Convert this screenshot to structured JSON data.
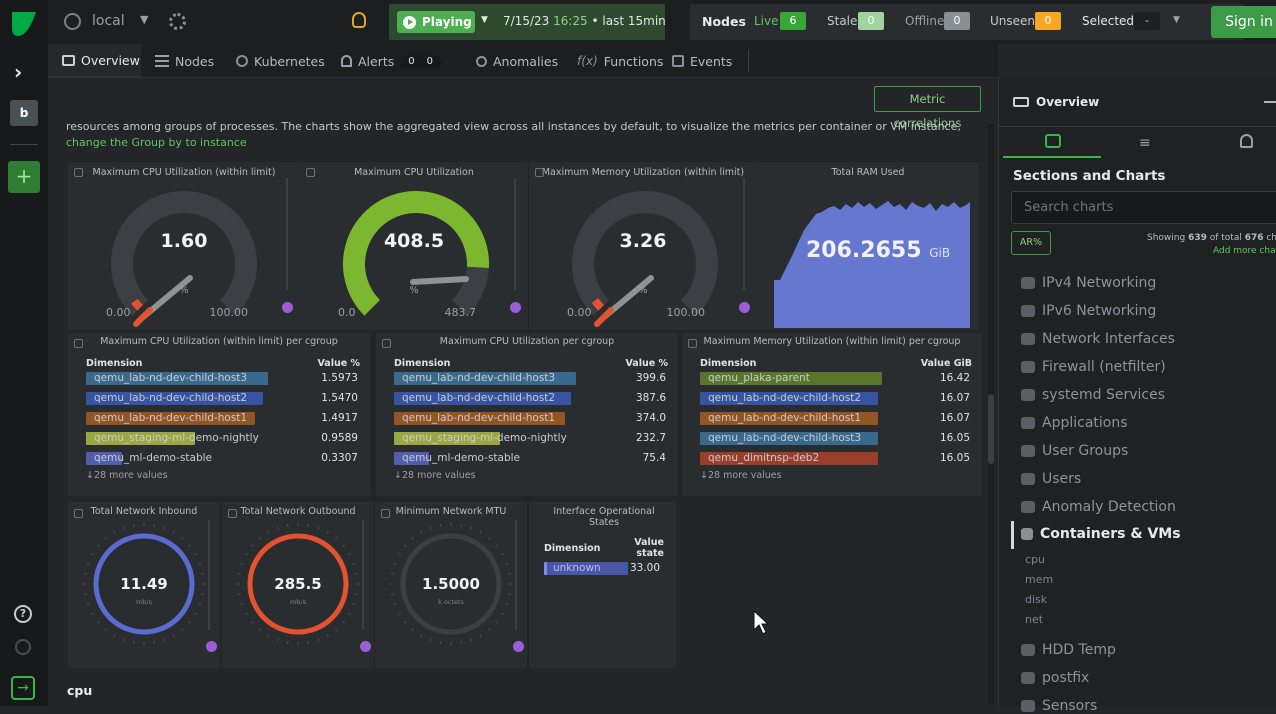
{
  "colors": {
    "accent": "#00ab44",
    "green": "#39b54a",
    "orange": "#f6a623",
    "play": "#4caf50",
    "gaugeGreen": "#7cb82f",
    "blue": "#5a6bd1",
    "red": "#e4522f"
  },
  "topbar": {
    "node_name": "local",
    "playing_label": "Playing",
    "date": "7/15/23",
    "time": "16:25",
    "range": "• last  15min",
    "nodes_label": "Nodes",
    "live_label": "Live",
    "live_count": "6",
    "stale_label": "Stale",
    "stale_count": "0",
    "offline_label": "Offline",
    "offline_count": "0",
    "unseen_label": "Unseen",
    "unseen_count": "0",
    "selected_label": "Selected",
    "selected_count": "-",
    "signin": "Sign in"
  },
  "rail": {
    "space_letter": "b",
    "add": "+"
  },
  "tabs": [
    {
      "label": "Overview"
    },
    {
      "label": "Nodes"
    },
    {
      "label": "Kubernetes"
    },
    {
      "label": "Alerts",
      "c1": "0",
      "c2": "0"
    },
    {
      "label": "Anomalies"
    },
    {
      "label": "Functions"
    },
    {
      "label": "Events"
    }
  ],
  "main": {
    "metric_correlations": "Metric correlations",
    "intro_text": "resources among groups of processes. The charts show the aggregated view across all instances by default, to visualize the metrics per container or VM instance,",
    "intro_link": "change the Group by to instance",
    "section_cpu": "cpu"
  },
  "gauges": [
    {
      "title": "Maximum CPU Utilization (within limit)",
      "value": "1.60",
      "unit": "%",
      "min": "0.00",
      "max": "100.00",
      "fraction": 0.016
    },
    {
      "title": "Maximum CPU Utilization",
      "value": "408.5",
      "unit": "%",
      "min": "0.0",
      "max": "483.7",
      "fraction": 0.845
    },
    {
      "title": "Maximum Memory Utilization (within limit)",
      "value": "3.26",
      "unit": "%",
      "min": "0.00",
      "max": "100.00",
      "fraction": 0.033
    }
  ],
  "ram": {
    "title": "Total RAM Used",
    "value": "206.2655",
    "unit": "GiB"
  },
  "tables": [
    {
      "title": "Maximum CPU Utilization (within limit) per cgroup",
      "dim": "Dimension",
      "val": "Value %",
      "more": "↓28 more values",
      "rows": [
        {
          "n": "qemu_lab-nd-dev-child-host3",
          "v": "1.5973",
          "c": "#3f7fae",
          "f": 1.0
        },
        {
          "n": "qemu_lab-nd-dev-child-host2",
          "v": "1.5470",
          "c": "#3a62c9",
          "f": 0.97
        },
        {
          "n": "qemu_lab-nd-dev-child-host1",
          "v": "1.4917",
          "c": "#b8631f",
          "f": 0.93
        },
        {
          "n": "qemu_staging-ml-demo-nightly",
          "v": "0.9589",
          "c": "#c3d048",
          "f": 0.6
        },
        {
          "n": "qemu_ml-demo-stable",
          "v": "0.3307",
          "c": "#5d6fd6",
          "f": 0.2
        }
      ]
    },
    {
      "title": "Maximum CPU Utilization per cgroup",
      "dim": "Dimension",
      "val": "Value %",
      "more": "↓28 more values",
      "rows": [
        {
          "n": "qemu_lab-nd-dev-child-host3",
          "v": "399.6",
          "c": "#3f7fae",
          "f": 1.0
        },
        {
          "n": "qemu_lab-nd-dev-child-host2",
          "v": "387.6",
          "c": "#3a62c9",
          "f": 0.97
        },
        {
          "n": "qemu_lab-nd-dev-child-host1",
          "v": "374.0",
          "c": "#b8631f",
          "f": 0.94
        },
        {
          "n": "qemu_staging-ml-demo-nightly",
          "v": "232.7",
          "c": "#c3d048",
          "f": 0.58
        },
        {
          "n": "qemu_ml-demo-stable",
          "v": "75.4",
          "c": "#5d6fd6",
          "f": 0.19
        }
      ]
    },
    {
      "title": "Maximum Memory Utilization (within limit) per cgroup",
      "dim": "Dimension",
      "val": "Value GiB",
      "more": "↓28 more values",
      "rows": [
        {
          "n": "qemu_plaka-parent",
          "v": "16.42",
          "c": "#6a8f2a",
          "f": 1.0
        },
        {
          "n": "qemu_lab-nd-dev-child-host2",
          "v": "16.07",
          "c": "#3a62c9",
          "f": 0.98
        },
        {
          "n": "qemu_lab-nd-dev-child-host1",
          "v": "16.07",
          "c": "#b8631f",
          "f": 0.98
        },
        {
          "n": "qemu_lab-nd-dev-child-host3",
          "v": "16.05",
          "c": "#3f7fae",
          "f": 0.98
        },
        {
          "n": "qemu_dimitnsp-deb2",
          "v": "16.05",
          "c": "#c0442b",
          "f": 0.98
        }
      ]
    }
  ],
  "net": [
    {
      "title": "Total Network Inbound",
      "value": "11.49",
      "unit": "mb/s",
      "color": "#5a6bd1"
    },
    {
      "title": "Total Network Outbound",
      "value": "285.5",
      "unit": "mb/s",
      "color": "#e4522f"
    },
    {
      "title": "Minimum Network MTU",
      "value": "1.5000",
      "unit": "k octets",
      "color": "#3b3f44"
    }
  ],
  "ifstate": {
    "title": "Interface Operational States",
    "dim": "Dimension",
    "val1": "Value",
    "val2": "state",
    "row": "unknown",
    "v": "33.00"
  },
  "rpanel": {
    "title": "Overview",
    "sections_title": "Sections and Charts",
    "search_placeholder": "Search charts",
    "ar": "AR%",
    "showing_pre": "Showing ",
    "showing_a": "639",
    "showing_mid": " of total ",
    "showing_b": "676",
    "showing_post": " cha",
    "add_more": "Add more chart",
    "items": [
      "IPv4 Networking",
      "IPv6 Networking",
      "Network Interfaces",
      "Firewall (netfilter)",
      "systemd Services",
      "Applications",
      "User Groups",
      "Users",
      "Anomaly Detection"
    ],
    "active": "Containers & VMs",
    "subs": [
      "cpu",
      "mem",
      "disk",
      "net"
    ],
    "after": [
      "HDD Temp",
      "postfix",
      "Sensors"
    ]
  }
}
